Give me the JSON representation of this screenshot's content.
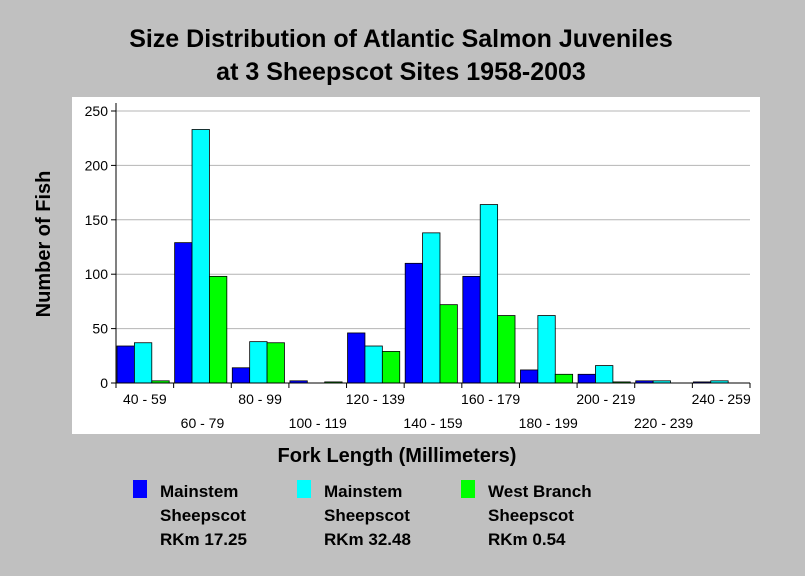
{
  "chart_data": {
    "type": "bar",
    "title_lines": [
      "Size Distribution of Atlantic Salmon Juveniles",
      "at 3 Sheepscot Sites 1958-2003"
    ],
    "xlabel": "Fork Length (Millimeters)",
    "ylabel": "Number of Fish",
    "ylim": [
      0,
      250
    ],
    "yticks": [
      0,
      50,
      100,
      150,
      200,
      250
    ],
    "grid": "horizontal",
    "legend_position": "bottom",
    "categories": [
      "40 - 59",
      "60 - 79",
      "80 - 99",
      "100 - 119",
      "120 - 139",
      "140 - 159",
      "160 - 179",
      "180 - 199",
      "200 - 219",
      "220 - 239",
      "240 - 259"
    ],
    "series": [
      {
        "name": "Mainstem Sheepscot RKm 17.25",
        "legend_lines": [
          "Mainstem",
          "Sheepscot",
          "RKm 17.25"
        ],
        "color": "#0000ff",
        "values": [
          34,
          129,
          14,
          2,
          46,
          110,
          98,
          12,
          8,
          2,
          1
        ]
      },
      {
        "name": "Mainstem Sheepscot RKm 32.48",
        "legend_lines": [
          "Mainstem",
          "Sheepscot",
          "RKm 32.48"
        ],
        "color": "#00ffff",
        "values": [
          37,
          233,
          38,
          0,
          34,
          138,
          164,
          62,
          16,
          2,
          2
        ]
      },
      {
        "name": "West Branch Sheepscot RKm 0.54",
        "legend_lines": [
          "West Branch",
          "Sheepscot",
          "RKm 0.54"
        ],
        "color": "#00ff00",
        "values": [
          2,
          98,
          37,
          1,
          29,
          72,
          62,
          8,
          1,
          0,
          0
        ]
      }
    ]
  }
}
